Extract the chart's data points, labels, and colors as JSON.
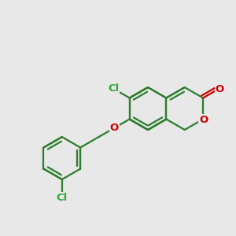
{
  "background_color": "#e8e8e8",
  "bond_color": "#2d7d2d",
  "heteroatom_color": "#cc0000",
  "cl_color": "#33aa33",
  "bond_width": 1.6,
  "font_size_atom": 9.5,
  "fig_width": 3.0,
  "fig_height": 3.0,
  "dpi": 100,
  "xlim": [
    0,
    300
  ],
  "ylim": [
    0,
    300
  ]
}
